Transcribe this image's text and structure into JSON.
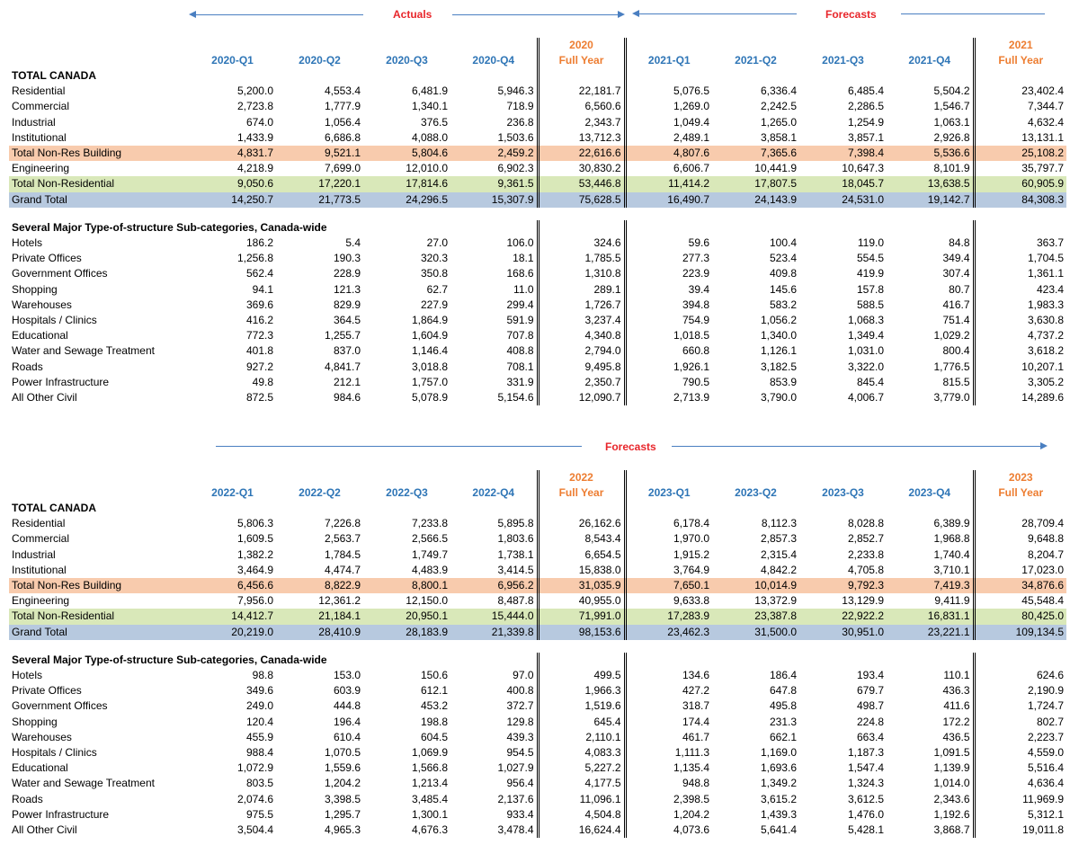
{
  "colors": {
    "quarter_header": "#2e75b6",
    "fullyear_header": "#ed7d31",
    "banner_label": "#e8262b",
    "arrow": "#4a7fc1",
    "band_total_nonres_building": "#f8cbad",
    "band_total_nonresidential": "#d9e8b9",
    "band_grand_total": "#b7c9df"
  },
  "top": {
    "banner": {
      "actuals": "Actuals",
      "forecasts": "Forecasts"
    },
    "headers": [
      "2020-Q1",
      "2020-Q2",
      "2020-Q3",
      "2020-Q4"
    ],
    "fy1_year": "2020",
    "fy1_label": "Full Year",
    "headers2": [
      "2021-Q1",
      "2021-Q2",
      "2021-Q3",
      "2021-Q4"
    ],
    "fy2_year": "2021",
    "fy2_label": "Full Year",
    "total_title": "TOTAL CANADA",
    "main_rows": [
      {
        "label": "Residential",
        "values": [
          "5,200.0",
          "4,553.4",
          "6,481.9",
          "5,946.3",
          "22,181.7",
          "5,076.5",
          "6,336.4",
          "6,485.4",
          "5,504.2",
          "23,402.4"
        ]
      },
      {
        "label": "Commercial",
        "values": [
          "2,723.8",
          "1,777.9",
          "1,340.1",
          "718.9",
          "6,560.6",
          "1,269.0",
          "2,242.5",
          "2,286.5",
          "1,546.7",
          "7,344.7"
        ]
      },
      {
        "label": "Industrial",
        "values": [
          "674.0",
          "1,056.4",
          "376.5",
          "236.8",
          "2,343.7",
          "1,049.4",
          "1,265.0",
          "1,254.9",
          "1,063.1",
          "4,632.4"
        ]
      },
      {
        "label": "Institutional",
        "values": [
          "1,433.9",
          "6,686.8",
          "4,088.0",
          "1,503.6",
          "13,712.3",
          "2,489.1",
          "3,858.1",
          "3,857.1",
          "2,926.8",
          "13,131.1"
        ]
      },
      {
        "label": "Total Non-Res Building",
        "band": "orange",
        "values": [
          "4,831.7",
          "9,521.1",
          "5,804.6",
          "2,459.2",
          "22,616.6",
          "4,807.6",
          "7,365.6",
          "7,398.4",
          "5,536.6",
          "25,108.2"
        ]
      },
      {
        "label": "Engineering",
        "values": [
          "4,218.9",
          "7,699.0",
          "12,010.0",
          "6,902.3",
          "30,830.2",
          "6,606.7",
          "10,441.9",
          "10,647.3",
          "8,101.9",
          "35,797.7"
        ]
      },
      {
        "label": "Total Non-Residential",
        "band": "green",
        "values": [
          "9,050.6",
          "17,220.1",
          "17,814.6",
          "9,361.5",
          "53,446.8",
          "11,414.2",
          "17,807.5",
          "18,045.7",
          "13,638.5",
          "60,905.9"
        ]
      },
      {
        "label": "Grand Total",
        "band": "blue",
        "values": [
          "14,250.7",
          "21,773.5",
          "24,296.5",
          "15,307.9",
          "75,628.5",
          "16,490.7",
          "24,143.9",
          "24,531.0",
          "19,142.7",
          "84,308.3"
        ]
      }
    ],
    "sub_title": "Several Major Type-of-structure Sub-categories, Canada-wide",
    "sub_rows": [
      {
        "label": "Hotels",
        "values": [
          "186.2",
          "5.4",
          "27.0",
          "106.0",
          "324.6",
          "59.6",
          "100.4",
          "119.0",
          "84.8",
          "363.7"
        ]
      },
      {
        "label": "Private Offices",
        "values": [
          "1,256.8",
          "190.3",
          "320.3",
          "18.1",
          "1,785.5",
          "277.3",
          "523.4",
          "554.5",
          "349.4",
          "1,704.5"
        ]
      },
      {
        "label": "Government Offices",
        "values": [
          "562.4",
          "228.9",
          "350.8",
          "168.6",
          "1,310.8",
          "223.9",
          "409.8",
          "419.9",
          "307.4",
          "1,361.1"
        ]
      },
      {
        "label": "Shopping",
        "values": [
          "94.1",
          "121.3",
          "62.7",
          "11.0",
          "289.1",
          "39.4",
          "145.6",
          "157.8",
          "80.7",
          "423.4"
        ]
      },
      {
        "label": "Warehouses",
        "values": [
          "369.6",
          "829.9",
          "227.9",
          "299.4",
          "1,726.7",
          "394.8",
          "583.2",
          "588.5",
          "416.7",
          "1,983.3"
        ]
      },
      {
        "label": "Hospitals / Clinics",
        "values": [
          "416.2",
          "364.5",
          "1,864.9",
          "591.9",
          "3,237.4",
          "754.9",
          "1,056.2",
          "1,068.3",
          "751.4",
          "3,630.8"
        ]
      },
      {
        "label": "Educational",
        "values": [
          "772.3",
          "1,255.7",
          "1,604.9",
          "707.8",
          "4,340.8",
          "1,018.5",
          "1,340.0",
          "1,349.4",
          "1,029.2",
          "4,737.2"
        ]
      },
      {
        "label": "Water and Sewage Treatment",
        "values": [
          "401.8",
          "837.0",
          "1,146.4",
          "408.8",
          "2,794.0",
          "660.8",
          "1,126.1",
          "1,031.0",
          "800.4",
          "3,618.2"
        ]
      },
      {
        "label": "Roads",
        "values": [
          "927.2",
          "4,841.7",
          "3,018.8",
          "708.1",
          "9,495.8",
          "1,926.1",
          "3,182.5",
          "3,322.0",
          "1,776.5",
          "10,207.1"
        ]
      },
      {
        "label": "Power Infrastructure",
        "values": [
          "49.8",
          "212.1",
          "1,757.0",
          "331.9",
          "2,350.7",
          "790.5",
          "853.9",
          "845.4",
          "815.5",
          "3,305.2"
        ]
      },
      {
        "label": "All Other Civil",
        "values": [
          "872.5",
          "984.6",
          "5,078.9",
          "5,154.6",
          "12,090.7",
          "2,713.9",
          "3,790.0",
          "4,006.7",
          "3,779.0",
          "14,289.6"
        ]
      }
    ]
  },
  "bottom": {
    "banner": {
      "forecasts": "Forecasts"
    },
    "headers": [
      "2022-Q1",
      "2022-Q2",
      "2022-Q3",
      "2022-Q4"
    ],
    "fy1_year": "2022",
    "fy1_label": "Full Year",
    "headers2": [
      "2023-Q1",
      "2023-Q2",
      "2023-Q3",
      "2023-Q4"
    ],
    "fy2_year": "2023",
    "fy2_label": "Full Year",
    "total_title": "TOTAL CANADA",
    "main_rows": [
      {
        "label": "Residential",
        "values": [
          "5,806.3",
          "7,226.8",
          "7,233.8",
          "5,895.8",
          "26,162.6",
          "6,178.4",
          "8,112.3",
          "8,028.8",
          "6,389.9",
          "28,709.4"
        ]
      },
      {
        "label": "Commercial",
        "values": [
          "1,609.5",
          "2,563.7",
          "2,566.5",
          "1,803.6",
          "8,543.4",
          "1,970.0",
          "2,857.3",
          "2,852.7",
          "1,968.8",
          "9,648.8"
        ]
      },
      {
        "label": "Industrial",
        "values": [
          "1,382.2",
          "1,784.5",
          "1,749.7",
          "1,738.1",
          "6,654.5",
          "1,915.2",
          "2,315.4",
          "2,233.8",
          "1,740.4",
          "8,204.7"
        ]
      },
      {
        "label": "Institutional",
        "values": [
          "3,464.9",
          "4,474.7",
          "4,483.9",
          "3,414.5",
          "15,838.0",
          "3,764.9",
          "4,842.2",
          "4,705.8",
          "3,710.1",
          "17,023.0"
        ]
      },
      {
        "label": "Total Non-Res Building",
        "band": "orange",
        "values": [
          "6,456.6",
          "8,822.9",
          "8,800.1",
          "6,956.2",
          "31,035.9",
          "7,650.1",
          "10,014.9",
          "9,792.3",
          "7,419.3",
          "34,876.6"
        ]
      },
      {
        "label": "Engineering",
        "values": [
          "7,956.0",
          "12,361.2",
          "12,150.0",
          "8,487.8",
          "40,955.0",
          "9,633.8",
          "13,372.9",
          "13,129.9",
          "9,411.9",
          "45,548.4"
        ]
      },
      {
        "label": "Total Non-Residential",
        "band": "green",
        "values": [
          "14,412.7",
          "21,184.1",
          "20,950.1",
          "15,444.0",
          "71,991.0",
          "17,283.9",
          "23,387.8",
          "22,922.2",
          "16,831.1",
          "80,425.0"
        ]
      },
      {
        "label": "Grand Total",
        "band": "blue",
        "values": [
          "20,219.0",
          "28,410.9",
          "28,183.9",
          "21,339.8",
          "98,153.6",
          "23,462.3",
          "31,500.0",
          "30,951.0",
          "23,221.1",
          "109,134.5"
        ]
      }
    ],
    "sub_title": "Several Major Type-of-structure Sub-categories, Canada-wide",
    "sub_rows": [
      {
        "label": "Hotels",
        "values": [
          "98.8",
          "153.0",
          "150.6",
          "97.0",
          "499.5",
          "134.6",
          "186.4",
          "193.4",
          "110.1",
          "624.6"
        ]
      },
      {
        "label": "Private Offices",
        "values": [
          "349.6",
          "603.9",
          "612.1",
          "400.8",
          "1,966.3",
          "427.2",
          "647.8",
          "679.7",
          "436.3",
          "2,190.9"
        ]
      },
      {
        "label": "Government Offices",
        "values": [
          "249.0",
          "444.8",
          "453.2",
          "372.7",
          "1,519.6",
          "318.7",
          "495.8",
          "498.7",
          "411.6",
          "1,724.7"
        ]
      },
      {
        "label": "Shopping",
        "values": [
          "120.4",
          "196.4",
          "198.8",
          "129.8",
          "645.4",
          "174.4",
          "231.3",
          "224.8",
          "172.2",
          "802.7"
        ]
      },
      {
        "label": "Warehouses",
        "values": [
          "455.9",
          "610.4",
          "604.5",
          "439.3",
          "2,110.1",
          "461.7",
          "662.1",
          "663.4",
          "436.5",
          "2,223.7"
        ]
      },
      {
        "label": "Hospitals / Clinics",
        "values": [
          "988.4",
          "1,070.5",
          "1,069.9",
          "954.5",
          "4,083.3",
          "1,111.3",
          "1,169.0",
          "1,187.3",
          "1,091.5",
          "4,559.0"
        ]
      },
      {
        "label": "Educational",
        "values": [
          "1,072.9",
          "1,559.6",
          "1,566.8",
          "1,027.9",
          "5,227.2",
          "1,135.4",
          "1,693.6",
          "1,547.4",
          "1,139.9",
          "5,516.4"
        ]
      },
      {
        "label": "Water and Sewage Treatment",
        "values": [
          "803.5",
          "1,204.2",
          "1,213.4",
          "956.4",
          "4,177.5",
          "948.8",
          "1,349.2",
          "1,324.3",
          "1,014.0",
          "4,636.4"
        ]
      },
      {
        "label": "Roads",
        "values": [
          "2,074.6",
          "3,398.5",
          "3,485.4",
          "2,137.6",
          "11,096.1",
          "2,398.5",
          "3,615.2",
          "3,612.5",
          "2,343.6",
          "11,969.9"
        ]
      },
      {
        "label": "Power Infrastructure",
        "values": [
          "975.5",
          "1,295.7",
          "1,300.1",
          "933.4",
          "4,504.8",
          "1,204.2",
          "1,439.3",
          "1,476.0",
          "1,192.6",
          "5,312.1"
        ]
      },
      {
        "label": "All Other Civil",
        "values": [
          "3,504.4",
          "4,965.3",
          "4,676.3",
          "3,478.4",
          "16,624.4",
          "4,073.6",
          "5,641.4",
          "5,428.1",
          "3,868.7",
          "19,011.8"
        ]
      }
    ]
  }
}
